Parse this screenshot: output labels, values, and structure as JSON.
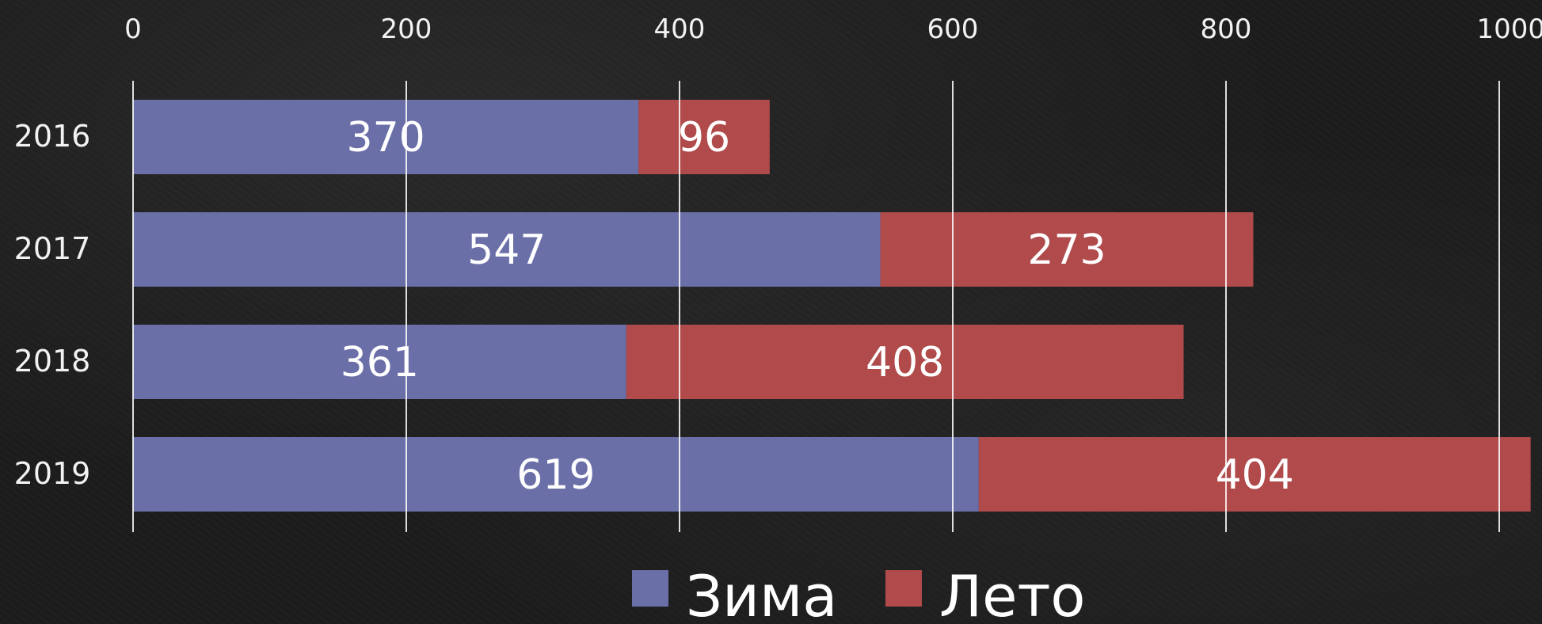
{
  "chart_data": {
    "type": "bar",
    "orientation": "horizontal",
    "stacked": true,
    "categories": [
      "2016",
      "2017",
      "2018",
      "2019"
    ],
    "series": [
      {
        "name": "Зима",
        "values": [
          370,
          547,
          361,
          619
        ],
        "color": "#6b6fa8"
      },
      {
        "name": "Лето",
        "values": [
          96,
          273,
          408,
          404
        ],
        "color": "#b04a4b"
      }
    ],
    "xlim": [
      0,
      1000
    ],
    "xticks": [
      0,
      200,
      400,
      600,
      800,
      1000
    ],
    "x_axis_position": "top",
    "grid": true,
    "legend_position": "bottom-center",
    "background": "#1c1c1c"
  }
}
